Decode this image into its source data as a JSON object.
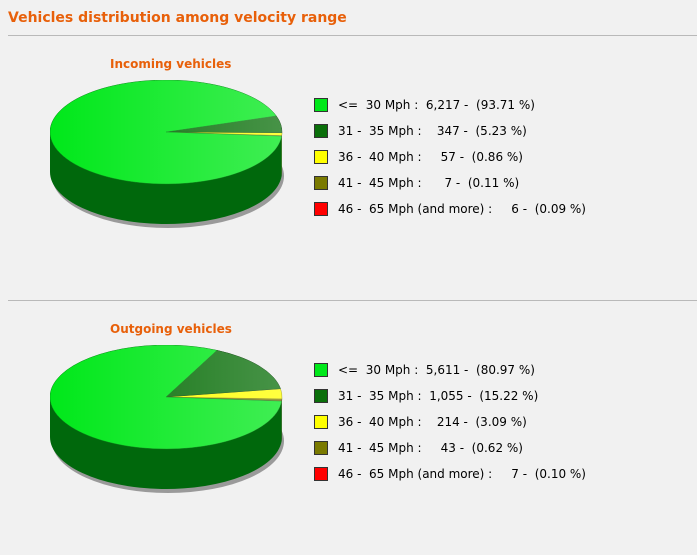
{
  "page": {
    "title": "Vehicles distribution among velocity range"
  },
  "colors": {
    "title": "#e8600a",
    "ranges": [
      "#00e81a",
      "#0a6f0a",
      "#ffff00",
      "#7a7a00",
      "#ff0000"
    ]
  },
  "chart_data": [
    {
      "type": "pie",
      "title": "Incoming vehicles",
      "labels": [
        "<=  30 Mph",
        "31 -  35 Mph",
        "36 -  40 Mph",
        "41 -  45 Mph",
        "46 -  65 Mph (and more)"
      ],
      "values": [
        6217,
        347,
        57,
        7,
        6
      ],
      "percentages": [
        93.71,
        5.23,
        0.86,
        0.11,
        0.09
      ],
      "legend_placement": "right",
      "legend": [
        "<=  30 Mph :  6,217 -  (93.71 %)",
        "31 -  35 Mph :    347 -  (5.23 %)",
        "36 -  40 Mph :     57 -  (0.86 %)",
        "41 -  45 Mph :      7 -  (0.11 %)",
        "46 -  65 Mph (and more) :     6 -  (0.09 %)"
      ]
    },
    {
      "type": "pie",
      "title": "Outgoing vehicles",
      "labels": [
        "<=  30 Mph",
        "31 -  35 Mph",
        "36 -  40 Mph",
        "41 -  45 Mph",
        "46 -  65 Mph (and more)"
      ],
      "values": [
        5611,
        1055,
        214,
        43,
        7
      ],
      "percentages": [
        80.97,
        15.22,
        3.09,
        0.62,
        0.1
      ],
      "legend_placement": "right",
      "legend": [
        "<=  30 Mph :  5,611 -  (80.97 %)",
        "31 -  35 Mph :  1,055 -  (15.22 %)",
        "36 -  40 Mph :    214 -  (3.09 %)",
        "41 -  45 Mph :     43 -  (0.62 %)",
        "46 -  65 Mph (and more) :     7 -  (0.10 %)"
      ]
    }
  ]
}
